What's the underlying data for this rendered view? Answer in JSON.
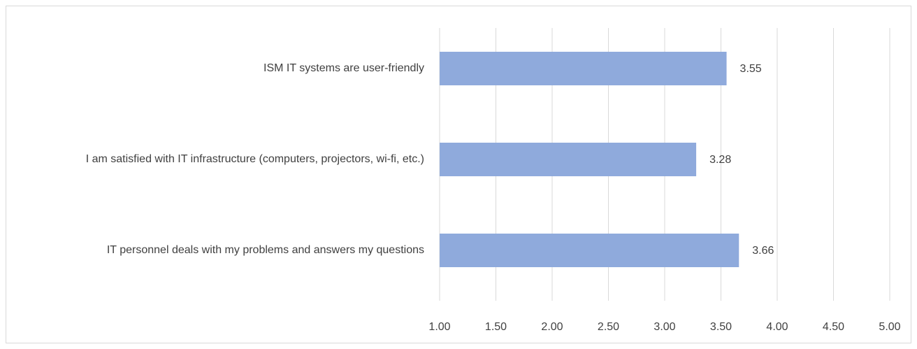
{
  "chart_data": {
    "type": "bar",
    "orientation": "horizontal",
    "categories": [
      "ISM IT systems are user-friendly",
      "I am satisfied with IT infrastructure (computers, projectors, wi-fi, etc.)",
      "IT personnel deals with my problems and answers my questions"
    ],
    "values": [
      3.55,
      3.28,
      3.66
    ],
    "color": "#8faadc",
    "xlim": [
      1,
      5
    ],
    "xticks": [
      {
        "value": 1,
        "label": "1.00"
      },
      {
        "value": 1.5,
        "label": "1.50"
      },
      {
        "value": 2,
        "label": "2.00"
      },
      {
        "value": 2.5,
        "label": "2.50"
      },
      {
        "value": 3,
        "label": "3.00"
      },
      {
        "value": 3.5,
        "label": "3.50"
      },
      {
        "value": 4,
        "label": "4.00"
      },
      {
        "value": 4.5,
        "label": "4.50"
      },
      {
        "value": 5,
        "label": "5.00"
      }
    ],
    "grid": true
  }
}
